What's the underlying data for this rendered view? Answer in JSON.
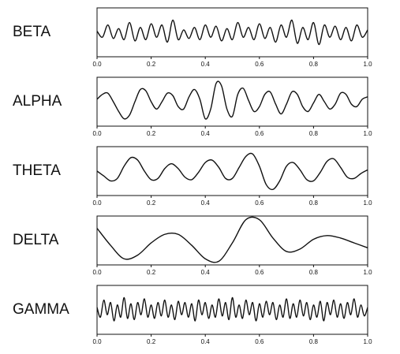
{
  "chart_data": [
    {
      "type": "line",
      "title": "BETA",
      "color": "#111111",
      "xlim": [
        0,
        1
      ],
      "ylim": [
        -1,
        1
      ],
      "xticks": [
        {
          "value": 0,
          "label": "0.0"
        },
        0.2,
        0.4,
        0.6,
        0.8,
        {
          "value": 1,
          "label": "1.0"
        }
      ],
      "x": [
        0,
        0.02,
        0.04,
        0.06,
        0.08,
        0.1,
        0.12,
        0.14,
        0.16,
        0.18,
        0.2,
        0.22,
        0.24,
        0.26,
        0.28,
        0.3,
        0.32,
        0.34,
        0.36,
        0.38,
        0.4,
        0.42,
        0.44,
        0.46,
        0.48,
        0.5,
        0.52,
        0.54,
        0.56,
        0.58,
        0.6,
        0.62,
        0.64,
        0.66,
        0.68,
        0.7,
        0.72,
        0.74,
        0.76,
        0.78,
        0.8,
        0.82,
        0.84,
        0.86,
        0.88,
        0.9,
        0.92,
        0.94,
        0.96,
        0.98,
        1
      ],
      "values": [
        0.05,
        -0.2,
        0.3,
        -0.25,
        0.15,
        -0.3,
        0.4,
        -0.35,
        0.2,
        -0.3,
        0.35,
        -0.2,
        0.3,
        -0.4,
        0.5,
        -0.3,
        0.1,
        -0.25,
        0.2,
        -0.3,
        0.3,
        -0.2,
        0.25,
        -0.35,
        0.15,
        -0.3,
        0.4,
        -0.2,
        0.2,
        -0.3,
        0.35,
        -0.25,
        0.2,
        -0.4,
        0.3,
        -0.2,
        0.5,
        -0.45,
        0.2,
        -0.3,
        0.4,
        -0.5,
        0.3,
        -0.2,
        0.25,
        -0.3,
        0.2,
        -0.35,
        0.3,
        -0.2,
        0.1
      ]
    },
    {
      "type": "line",
      "title": "ALPHA",
      "color": "#111111",
      "xlim": [
        0,
        1
      ],
      "ylim": [
        -1,
        1
      ],
      "xticks": [
        {
          "value": 0,
          "label": "0.0"
        },
        0.2,
        0.4,
        0.6,
        0.8,
        {
          "value": 1,
          "label": "1.0"
        }
      ],
      "x": [
        0,
        0.02,
        0.04,
        0.06,
        0.08,
        0.1,
        0.12,
        0.14,
        0.16,
        0.18,
        0.2,
        0.22,
        0.24,
        0.26,
        0.28,
        0.3,
        0.32,
        0.34,
        0.36,
        0.38,
        0.4,
        0.42,
        0.44,
        0.46,
        0.48,
        0.5,
        0.52,
        0.54,
        0.56,
        0.58,
        0.6,
        0.62,
        0.64,
        0.66,
        0.68,
        0.7,
        0.72,
        0.74,
        0.76,
        0.78,
        0.8,
        0.82,
        0.84,
        0.86,
        0.88,
        0.9,
        0.92,
        0.94,
        0.96,
        0.98,
        1
      ],
      "values": [
        0.1,
        0.3,
        0.35,
        0.0,
        -0.4,
        -0.7,
        -0.55,
        0.0,
        0.5,
        0.45,
        0.0,
        -0.3,
        0.0,
        0.35,
        0.25,
        -0.2,
        -0.3,
        0.2,
        0.5,
        0.1,
        -0.7,
        -0.3,
        0.75,
        0.65,
        -0.3,
        -0.6,
        0.3,
        0.55,
        0.05,
        -0.4,
        -0.2,
        0.3,
        0.4,
        -0.1,
        -0.5,
        -0.1,
        0.4,
        0.3,
        -0.2,
        -0.4,
        -0.05,
        0.3,
        0.0,
        -0.3,
        -0.1,
        0.35,
        0.3,
        -0.1,
        -0.2,
        0.1,
        0.2
      ]
    },
    {
      "type": "line",
      "title": "THETA",
      "color": "#111111",
      "xlim": [
        0,
        1
      ],
      "ylim": [
        -1,
        1
      ],
      "xticks": [
        {
          "value": 0,
          "label": "0.0"
        },
        0.2,
        0.4,
        0.6,
        0.8,
        {
          "value": 1,
          "label": "1.0"
        }
      ],
      "x": [
        0,
        0.025,
        0.05,
        0.075,
        0.1,
        0.125,
        0.15,
        0.175,
        0.2,
        0.225,
        0.25,
        0.275,
        0.3,
        0.325,
        0.35,
        0.375,
        0.4,
        0.425,
        0.45,
        0.475,
        0.5,
        0.525,
        0.55,
        0.575,
        0.6,
        0.625,
        0.65,
        0.675,
        0.7,
        0.725,
        0.75,
        0.775,
        0.8,
        0.825,
        0.85,
        0.875,
        0.9,
        0.925,
        0.95,
        0.975,
        1
      ],
      "values": [
        0.0,
        -0.2,
        -0.4,
        -0.3,
        0.2,
        0.55,
        0.45,
        0.0,
        -0.35,
        -0.3,
        0.1,
        0.3,
        0.1,
        -0.25,
        -0.35,
        -0.05,
        0.35,
        0.45,
        0.15,
        -0.3,
        -0.3,
        0.15,
        0.6,
        0.7,
        0.2,
        -0.55,
        -0.75,
        -0.4,
        0.2,
        0.35,
        0.05,
        -0.35,
        -0.4,
        -0.05,
        0.4,
        0.5,
        0.15,
        -0.25,
        -0.3,
        -0.1,
        0.05
      ]
    },
    {
      "type": "line",
      "title": "DELTA",
      "color": "#111111",
      "xlim": [
        0,
        1
      ],
      "ylim": [
        -1,
        1
      ],
      "xticks": [
        {
          "value": 0,
          "label": "0.0"
        },
        0.2,
        0.4,
        0.6,
        0.8,
        {
          "value": 1,
          "label": "1.0"
        }
      ],
      "x": [
        0,
        0.05,
        0.1,
        0.15,
        0.2,
        0.25,
        0.3,
        0.35,
        0.4,
        0.45,
        0.5,
        0.55,
        0.6,
        0.65,
        0.7,
        0.75,
        0.8,
        0.85,
        0.9,
        0.95,
        1
      ],
      "values": [
        0.5,
        -0.2,
        -0.75,
        -0.6,
        -0.1,
        0.25,
        0.25,
        -0.2,
        -0.75,
        -0.85,
        -0.1,
        0.85,
        0.85,
        0.1,
        -0.45,
        -0.35,
        0.05,
        0.2,
        0.1,
        -0.1,
        -0.3
      ]
    },
    {
      "type": "line",
      "title": "GAMMA",
      "color": "#111111",
      "xlim": [
        0,
        1
      ],
      "ylim": [
        -1,
        1
      ],
      "xticks": [
        {
          "value": 0,
          "label": "0.0"
        },
        0.2,
        0.4,
        0.6,
        0.8,
        {
          "value": 1,
          "label": "1.0"
        }
      ],
      "x": [
        0,
        0.0125,
        0.025,
        0.0375,
        0.05,
        0.0625,
        0.075,
        0.0875,
        0.1,
        0.1125,
        0.125,
        0.1375,
        0.15,
        0.1625,
        0.175,
        0.1875,
        0.2,
        0.2125,
        0.225,
        0.2375,
        0.25,
        0.2625,
        0.275,
        0.2875,
        0.3,
        0.3125,
        0.325,
        0.3375,
        0.35,
        0.3625,
        0.375,
        0.3875,
        0.4,
        0.4125,
        0.425,
        0.4375,
        0.45,
        0.4625,
        0.475,
        0.4875,
        0.5,
        0.5125,
        0.525,
        0.5375,
        0.55,
        0.5625,
        0.575,
        0.5875,
        0.6,
        0.6125,
        0.625,
        0.6375,
        0.65,
        0.6625,
        0.675,
        0.6875,
        0.7,
        0.7125,
        0.725,
        0.7375,
        0.75,
        0.7625,
        0.775,
        0.7875,
        0.8,
        0.8125,
        0.825,
        0.8375,
        0.85,
        0.8625,
        0.875,
        0.8875,
        0.9,
        0.9125,
        0.925,
        0.9375,
        0.95,
        0.9625,
        0.975,
        0.9875,
        1
      ],
      "values": [
        0.1,
        -0.3,
        0.4,
        -0.2,
        0.3,
        -0.45,
        0.2,
        -0.3,
        0.5,
        -0.35,
        0.25,
        -0.4,
        0.3,
        -0.2,
        0.45,
        -0.3,
        0.2,
        -0.35,
        0.3,
        -0.25,
        0.4,
        -0.3,
        0.2,
        -0.4,
        0.35,
        -0.2,
        0.3,
        -0.3,
        0.25,
        -0.45,
        0.4,
        -0.2,
        0.3,
        -0.35,
        0.2,
        -0.3,
        0.45,
        -0.25,
        0.3,
        -0.4,
        0.5,
        -0.3,
        0.2,
        -0.35,
        0.4,
        -0.2,
        0.3,
        -0.45,
        0.25,
        -0.3,
        0.35,
        -0.2,
        0.3,
        -0.4,
        0.2,
        -0.3,
        0.45,
        -0.35,
        0.25,
        -0.3,
        0.4,
        -0.25,
        0.3,
        -0.4,
        0.2,
        -0.3,
        0.35,
        -0.45,
        0.3,
        -0.2,
        0.4,
        -0.3,
        0.25,
        -0.35,
        0.3,
        -0.2,
        0.45,
        -0.3,
        0.2,
        -0.25,
        0.1
      ]
    }
  ]
}
